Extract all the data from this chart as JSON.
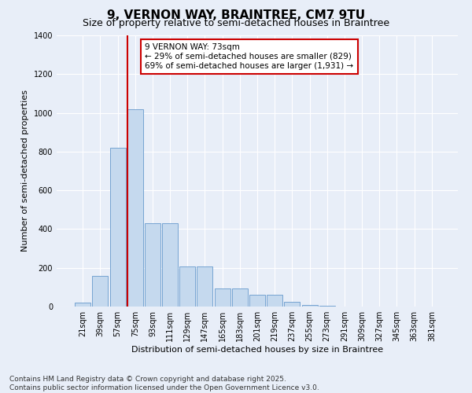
{
  "title": "9, VERNON WAY, BRAINTREE, CM7 9TU",
  "subtitle": "Size of property relative to semi-detached houses in Braintree",
  "xlabel": "Distribution of semi-detached houses by size in Braintree",
  "ylabel": "Number of semi-detached properties",
  "categories": [
    "21sqm",
    "39sqm",
    "57sqm",
    "75sqm",
    "93sqm",
    "111sqm",
    "129sqm",
    "147sqm",
    "165sqm",
    "183sqm",
    "201sqm",
    "219sqm",
    "237sqm",
    "255sqm",
    "273sqm",
    "291sqm",
    "309sqm",
    "327sqm",
    "345sqm",
    "363sqm",
    "381sqm"
  ],
  "values": [
    20,
    160,
    820,
    1020,
    430,
    430,
    205,
    205,
    95,
    95,
    60,
    60,
    25,
    10,
    5,
    0,
    0,
    0,
    0,
    0,
    0
  ],
  "bar_color": "#c5d9ee",
  "bar_edge_color": "#6699cc",
  "red_line_x": 3.0,
  "annotation_text": "9 VERNON WAY: 73sqm\n← 29% of semi-detached houses are smaller (829)\n69% of semi-detached houses are larger (1,931) →",
  "annotation_box_color": "#ffffff",
  "annotation_box_edge": "#cc0000",
  "red_line_color": "#cc0000",
  "ylim": [
    0,
    1400
  ],
  "yticks": [
    0,
    200,
    400,
    600,
    800,
    1000,
    1200,
    1400
  ],
  "background_color": "#e8eef8",
  "grid_color": "#ffffff",
  "footnote": "Contains HM Land Registry data © Crown copyright and database right 2025.\nContains public sector information licensed under the Open Government Licence v3.0.",
  "title_fontsize": 11,
  "subtitle_fontsize": 9,
  "xlabel_fontsize": 8,
  "ylabel_fontsize": 8,
  "tick_fontsize": 7,
  "annot_fontsize": 7.5,
  "footnote_fontsize": 6.5
}
